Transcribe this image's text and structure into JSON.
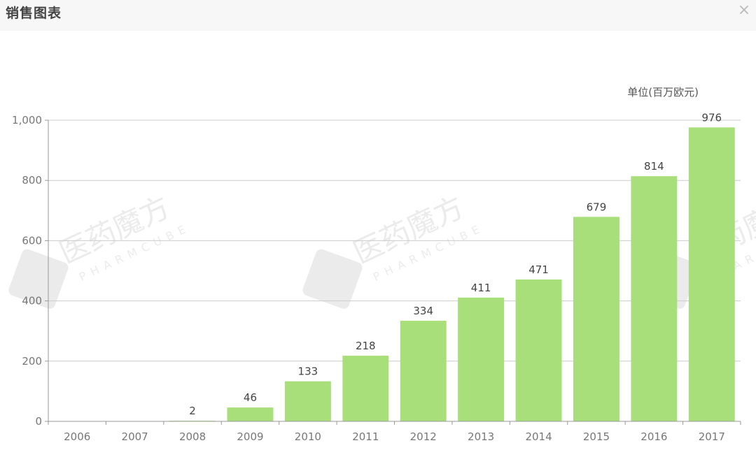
{
  "window": {
    "title": "销售图表",
    "close_icon": "close-icon",
    "close_glyph": "×"
  },
  "watermark": {
    "name": "医药魔方",
    "subtitle": "PHARMCUBE",
    "logo_letters": [
      "P",
      "M",
      "C"
    ]
  },
  "chart_data": {
    "type": "bar",
    "unit_label": "单位(百万欧元)",
    "categories": [
      "2006",
      "2007",
      "2008",
      "2009",
      "2010",
      "2011",
      "2012",
      "2013",
      "2014",
      "2015",
      "2016",
      "2017"
    ],
    "values": [
      0,
      0,
      2,
      46,
      133,
      218,
      334,
      411,
      471,
      679,
      814,
      976
    ],
    "data_labels": [
      "",
      "",
      "2",
      "46",
      "133",
      "218",
      "334",
      "411",
      "471",
      "679",
      "814",
      "976"
    ],
    "ylim": [
      0,
      1000
    ],
    "yticks": [
      0,
      200,
      400,
      600,
      800,
      1000
    ],
    "ytick_labels": [
      "0",
      "200",
      "400",
      "600",
      "800",
      "1,000"
    ],
    "grid": true,
    "colors": {
      "bar": "#a8df7a",
      "grid": "#cccccc",
      "axis": "#999999"
    }
  }
}
